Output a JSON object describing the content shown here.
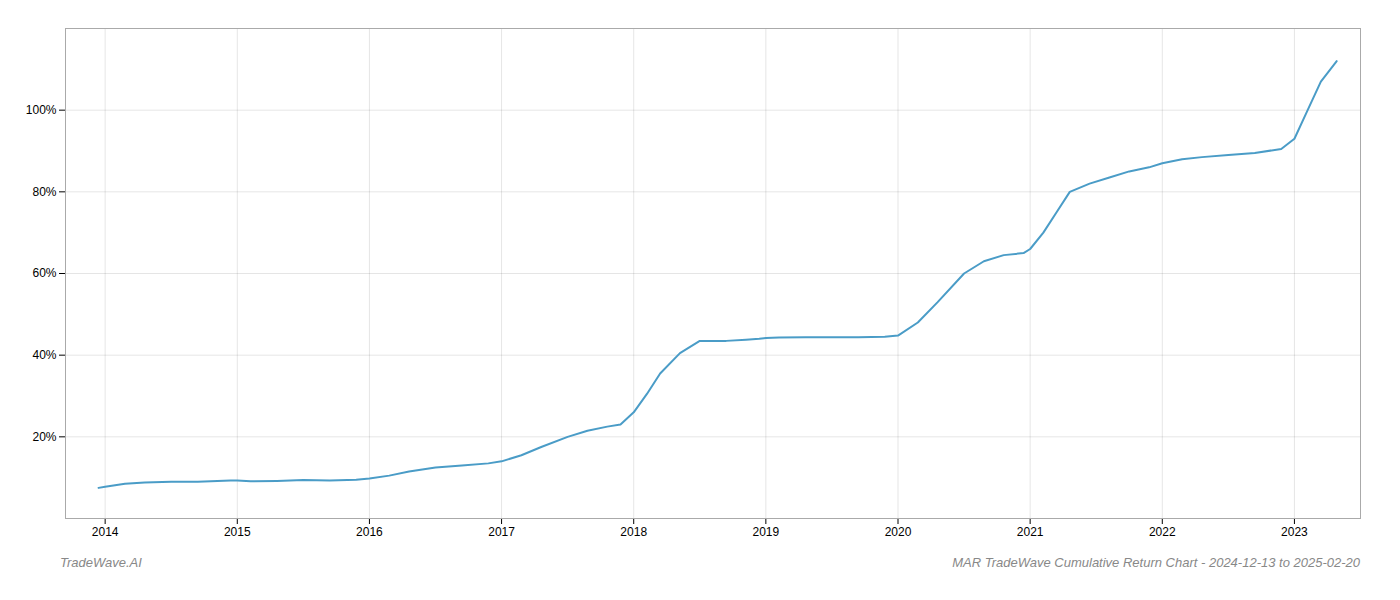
{
  "chart_data": {
    "type": "line",
    "annotations": [
      "TradeWave.AI",
      "MAR TradeWave Cumulative Return Chart - 2024-12-13 to 2025-02-20"
    ],
    "color": "#4a9cc7",
    "grid": true,
    "x": [
      2013.95,
      2014.0,
      2014.15,
      2014.3,
      2014.5,
      2014.7,
      2014.85,
      2014.95,
      2015.0,
      2015.1,
      2015.3,
      2015.5,
      2015.7,
      2015.9,
      2016.0,
      2016.15,
      2016.3,
      2016.5,
      2016.7,
      2016.9,
      2017.0,
      2017.15,
      2017.3,
      2017.5,
      2017.65,
      2017.8,
      2017.9,
      2018.0,
      2018.1,
      2018.2,
      2018.35,
      2018.5,
      2018.6,
      2018.7,
      2018.85,
      2018.95,
      2019.0,
      2019.1,
      2019.3,
      2019.5,
      2019.7,
      2019.9,
      2020.0,
      2020.15,
      2020.3,
      2020.5,
      2020.65,
      2020.8,
      2020.95,
      2021.0,
      2021.1,
      2021.2,
      2021.3,
      2021.45,
      2021.6,
      2021.75,
      2021.9,
      2022.0,
      2022.15,
      2022.3,
      2022.5,
      2022.7,
      2022.9,
      2023.0,
      2023.1,
      2023.2,
      2023.32
    ],
    "values": [
      7.5,
      7.8,
      8.5,
      8.8,
      9.0,
      9.0,
      9.2,
      9.3,
      9.3,
      9.1,
      9.2,
      9.4,
      9.3,
      9.5,
      9.8,
      10.5,
      11.5,
      12.5,
      13.0,
      13.5,
      14.0,
      15.5,
      17.5,
      20.0,
      21.5,
      22.5,
      23.0,
      26.0,
      30.5,
      35.5,
      40.5,
      43.5,
      43.5,
      43.5,
      43.8,
      44.0,
      44.2,
      44.3,
      44.4,
      44.4,
      44.4,
      44.5,
      44.8,
      48.0,
      53.0,
      60.0,
      63.0,
      64.5,
      65.0,
      66.0,
      70.0,
      75.0,
      80.0,
      82.0,
      83.5,
      85.0,
      86.0,
      87.0,
      88.0,
      88.5,
      89.0,
      89.5,
      90.5,
      93.0,
      100.0,
      107.0,
      112.0
    ],
    "xlim": [
      2013.7,
      2023.5
    ],
    "xticks": [
      2014,
      2015,
      2016,
      2017,
      2018,
      2019,
      2020,
      2021,
      2022,
      2023
    ],
    "ylim": [
      0,
      120
    ],
    "yticks": [
      {
        "value": 20,
        "label": "20%"
      },
      {
        "value": 40,
        "label": "40%"
      },
      {
        "value": 60,
        "label": "60%"
      },
      {
        "value": 80,
        "label": "80%"
      },
      {
        "value": 100,
        "label": "100%"
      }
    ]
  }
}
